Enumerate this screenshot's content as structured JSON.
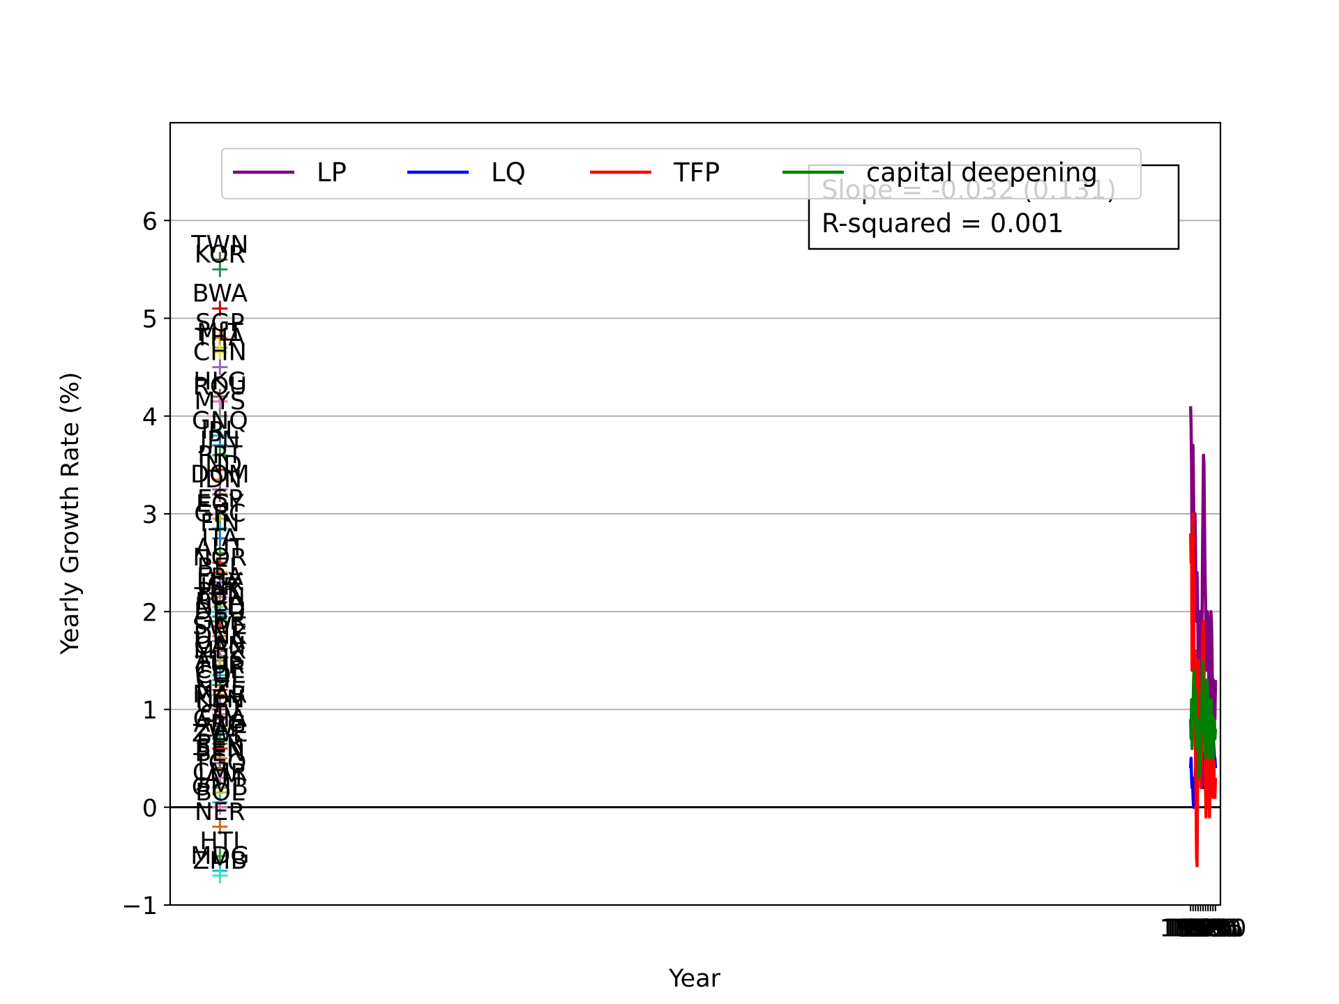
{
  "chart_data": {
    "type": "line",
    "xlabel": "Year",
    "ylabel": "Yearly Growth Rate (%)",
    "xlim": [
      -100,
      2010
    ],
    "ylim": [
      -1,
      7
    ],
    "yticks": [
      -1,
      0,
      1,
      2,
      3,
      4,
      5,
      6
    ],
    "grid": "horizontal",
    "x_ticks": [
      1950,
      1955,
      1960,
      1965,
      1970,
      1975,
      1980,
      1985,
      1990,
      1995,
      2000
    ],
    "legend_position": "top",
    "legend": [
      {
        "name": "LP",
        "color": "#800080"
      },
      {
        "name": "LQ",
        "color": "#0000ff"
      },
      {
        "name": "TFP",
        "color": "#ff0000"
      },
      {
        "name": "capital deepening",
        "color": "#008000"
      }
    ],
    "annotation": {
      "lines": [
        "Slope = -0.032 (0.131)",
        "R-squared = 0.001"
      ]
    },
    "series": [
      {
        "name": "LP",
        "color": "#800080",
        "x": [
          1950,
          1951,
          1952,
          1953,
          1954,
          1955,
          1956,
          1957,
          1958,
          1959,
          1960,
          1961,
          1962,
          1963,
          1964,
          1965,
          1966,
          1967,
          1968,
          1969,
          1970,
          1971,
          1972,
          1973,
          1974,
          1975,
          1976,
          1977,
          1978,
          1979,
          1980,
          1981,
          1982,
          1983,
          1984,
          1985,
          1986,
          1987,
          1988,
          1989,
          1990,
          1991,
          1992,
          1993,
          1994,
          1995,
          1996,
          1997,
          1998,
          1999,
          2000
        ],
        "y": [
          4.1,
          3.9,
          3.5,
          2.6,
          3.3,
          3.7,
          3.2,
          2.1,
          2.5,
          3.0,
          2.6,
          2.0,
          1.9,
          2.4,
          2.1,
          1.6,
          1.1,
          1.2,
          1.8,
          2.0,
          1.7,
          1.2,
          1.3,
          1.9,
          2.6,
          3.1,
          3.6,
          3.5,
          2.9,
          2.4,
          2.1,
          1.7,
          1.4,
          1.6,
          2.0,
          1.9,
          1.6,
          1.1,
          0.9,
          1.2,
          1.6,
          2.0,
          1.9,
          1.6,
          1.2,
          1.0,
          1.3,
          1.2,
          1.0,
          0.9,
          1.3
        ]
      },
      {
        "name": "LQ",
        "color": "#0000ff",
        "x": [
          1950,
          1951,
          1952,
          1953,
          1954,
          1955,
          1956,
          1957,
          1958,
          1959,
          1960,
          1961,
          1962,
          1963,
          1964,
          1965,
          1966,
          1967,
          1968,
          1969,
          1970,
          1971,
          1972,
          1973,
          1974,
          1975,
          1976,
          1977,
          1978,
          1979,
          1980,
          1981,
          1982,
          1983,
          1984,
          1985,
          1986,
          1987,
          1988,
          1989,
          1990,
          1991,
          1992,
          1993,
          1994,
          1995,
          1996,
          1997,
          1998,
          1999,
          2000
        ],
        "y": [
          0.4,
          0.5,
          0.3,
          0.2,
          0.3,
          0.1,
          0.0,
          0.0,
          0.1,
          0.2,
          0.4,
          0.3,
          0.5,
          0.6,
          0.8,
          0.9,
          0.7,
          0.6,
          0.8,
          1.0,
          0.9,
          0.7,
          0.6,
          0.5,
          0.3,
          0.2,
          0.3,
          0.4,
          0.5,
          0.4,
          0.3,
          0.3,
          0.4,
          0.5,
          0.6,
          0.7,
          0.8,
          0.7,
          0.6,
          0.5,
          0.5,
          0.6,
          0.7,
          0.6,
          0.5,
          0.6,
          0.7,
          0.6,
          0.5,
          0.5,
          0.4
        ]
      },
      {
        "name": "TFP",
        "color": "#ff0000",
        "x": [
          1950,
          1951,
          1952,
          1953,
          1954,
          1955,
          1956,
          1957,
          1958,
          1959,
          1960,
          1961,
          1962,
          1963,
          1964,
          1965,
          1966,
          1967,
          1968,
          1969,
          1970,
          1971,
          1972,
          1973,
          1974,
          1975,
          1976,
          1977,
          1978,
          1979,
          1980,
          1981,
          1982,
          1983,
          1984,
          1985,
          1986,
          1987,
          1988,
          1989,
          1990,
          1991,
          1992,
          1993,
          1994,
          1995,
          1996,
          1997,
          1998,
          1999,
          2000
        ],
        "y": [
          2.8,
          2.5,
          2.7,
          1.4,
          2.0,
          3.0,
          2.2,
          1.2,
          1.0,
          1.6,
          0.5,
          0.1,
          -0.5,
          -0.6,
          0.2,
          0.8,
          1.5,
          1.0,
          0.6,
          1.0,
          0.4,
          0.2,
          0.6,
          1.2,
          1.6,
          1.9,
          1.8,
          1.4,
          0.9,
          0.6,
          0.2,
          -0.1,
          0.3,
          0.8,
          1.1,
          1.0,
          0.7,
          0.3,
          -0.1,
          0.2,
          0.6,
          0.9,
          0.8,
          0.5,
          0.2,
          0.1,
          0.5,
          0.4,
          0.2,
          0.1,
          0.3
        ]
      },
      {
        "name": "capital deepening",
        "color": "#008000",
        "x": [
          1950,
          1951,
          1952,
          1953,
          1954,
          1955,
          1956,
          1957,
          1958,
          1959,
          1960,
          1961,
          1962,
          1963,
          1964,
          1965,
          1966,
          1967,
          1968,
          1969,
          1970,
          1971,
          1972,
          1973,
          1974,
          1975,
          1976,
          1977,
          1978,
          1979,
          1980,
          1981,
          1982,
          1983,
          1984,
          1985,
          1986,
          1987,
          1988,
          1989,
          1990,
          1991,
          1992,
          1993,
          1994,
          1995,
          1996,
          1997,
          1998,
          1999,
          2000
        ],
        "y": [
          0.9,
          0.7,
          1.1,
          0.6,
          0.8,
          1.0,
          1.3,
          1.4,
          1.1,
          0.9,
          1.2,
          1.0,
          0.7,
          0.6,
          0.9,
          0.8,
          0.5,
          0.3,
          0.6,
          0.4,
          0.6,
          0.8,
          0.9,
          1.2,
          1.5,
          1.3,
          1.1,
          0.9,
          0.7,
          0.5,
          0.6,
          0.9,
          1.1,
          1.3,
          1.2,
          1.0,
          0.8,
          0.6,
          0.5,
          0.7,
          0.9,
          1.1,
          1.0,
          0.8,
          0.7,
          0.5,
          0.6,
          0.8,
          0.9,
          0.7,
          0.8
        ]
      }
    ],
    "country_points": [
      {
        "label": "TWN",
        "y": 5.6,
        "color": "#556b2f"
      },
      {
        "label": "KOR",
        "y": 5.5,
        "color": "#2e8b57"
      },
      {
        "label": "BWA",
        "y": 5.1,
        "color": "#d00000"
      },
      {
        "label": "SGP",
        "y": 4.8,
        "color": "#ff7f0e"
      },
      {
        "label": "MLT",
        "y": 4.7,
        "color": "#bcbd22"
      },
      {
        "label": "THA",
        "y": 4.65,
        "color": "#e8e840"
      },
      {
        "label": "CHN",
        "y": 4.5,
        "color": "#9467bd"
      },
      {
        "label": "HKG",
        "y": 4.2,
        "color": "#8c564b"
      },
      {
        "label": "ROU",
        "y": 4.15,
        "color": "#e377c2"
      },
      {
        "label": "MYS",
        "y": 4.0,
        "color": "#7f7f7f"
      },
      {
        "label": "GNQ",
        "y": 3.8,
        "color": "#17becf"
      },
      {
        "label": "IRL",
        "y": 3.7,
        "color": "#1f77b4"
      },
      {
        "label": "JPN",
        "y": 3.6,
        "color": "#2ca02c"
      },
      {
        "label": "PRT",
        "y": 3.45,
        "color": "#d62728"
      },
      {
        "label": "IND",
        "y": 3.35,
        "color": "#ff7f0e"
      },
      {
        "label": "DOM",
        "y": 3.25,
        "color": "#9467bd"
      },
      {
        "label": "IDN",
        "y": 3.2,
        "color": "#8c564b"
      },
      {
        "label": "ESP",
        "y": 3.0,
        "color": "#e377c2"
      },
      {
        "label": "EGY",
        "y": 2.95,
        "color": "#bcbd22"
      },
      {
        "label": "GRC",
        "y": 2.85,
        "color": "#17becf"
      },
      {
        "label": "FIN",
        "y": 2.75,
        "color": "#1f77b4"
      },
      {
        "label": "ITA",
        "y": 2.6,
        "color": "#2ca02c"
      },
      {
        "label": "AUT",
        "y": 2.5,
        "color": "#d62728"
      },
      {
        "label": "NOR",
        "y": 2.4,
        "color": "#ff7f0e"
      },
      {
        "label": "BEL",
        "y": 2.3,
        "color": "#9467bd"
      },
      {
        "label": "FRA",
        "y": 2.2,
        "color": "#8c564b"
      },
      {
        "label": "LUX",
        "y": 2.15,
        "color": "#e377c2"
      },
      {
        "label": "ISR",
        "y": 2.1,
        "color": "#7f7f7f"
      },
      {
        "label": "PAK",
        "y": 2.05,
        "color": "#bcbd22"
      },
      {
        "label": "TUN",
        "y": 2.0,
        "color": "#17becf"
      },
      {
        "label": "BRA",
        "y": 1.95,
        "color": "#1f77b4"
      },
      {
        "label": "NLD",
        "y": 1.9,
        "color": "#2ca02c"
      },
      {
        "label": "DEU",
        "y": 1.85,
        "color": "#d62728"
      },
      {
        "label": "GBR",
        "y": 1.75,
        "color": "#ff7f0e"
      },
      {
        "label": "SWE",
        "y": 1.7,
        "color": "#9467bd"
      },
      {
        "label": "DNK",
        "y": 1.6,
        "color": "#8c564b"
      },
      {
        "label": "USA",
        "y": 1.55,
        "color": "#e377c2"
      },
      {
        "label": "CAN",
        "y": 1.5,
        "color": "#7f7f7f"
      },
      {
        "label": "MEX",
        "y": 1.45,
        "color": "#bcbd22"
      },
      {
        "label": "AUS",
        "y": 1.35,
        "color": "#17becf"
      },
      {
        "label": "TUR",
        "y": 1.3,
        "color": "#1f77b4"
      },
      {
        "label": "CHE",
        "y": 1.25,
        "color": "#2ca02c"
      },
      {
        "label": "COL",
        "y": 1.2,
        "color": "#d62728"
      },
      {
        "label": "CHL",
        "y": 1.15,
        "color": "#ff7f0e"
      },
      {
        "label": "NZL",
        "y": 1.05,
        "color": "#9467bd"
      },
      {
        "label": "MAR",
        "y": 1.0,
        "color": "#8c564b"
      },
      {
        "label": "KEN",
        "y": 0.95,
        "color": "#e377c2"
      },
      {
        "label": "URY",
        "y": 0.9,
        "color": "#7f7f7f"
      },
      {
        "label": "CIV",
        "y": 0.8,
        "color": "#bcbd22"
      },
      {
        "label": "GHA",
        "y": 0.75,
        "color": "#17becf"
      },
      {
        "label": "ARG",
        "y": 0.7,
        "color": "#1f77b4"
      },
      {
        "label": "ZAF",
        "y": 0.65,
        "color": "#2ca02c"
      },
      {
        "label": "ZWE",
        "y": 0.6,
        "color": "#d62728"
      },
      {
        "label": "PER",
        "y": 0.5,
        "color": "#ff7f0e"
      },
      {
        "label": "SEN",
        "y": 0.45,
        "color": "#9467bd"
      },
      {
        "label": "BEN",
        "y": 0.4,
        "color": "#8c564b"
      },
      {
        "label": "TGO",
        "y": 0.3,
        "color": "#e377c2"
      },
      {
        "label": "CMR",
        "y": 0.2,
        "color": "#7f7f7f"
      },
      {
        "label": "JAM",
        "y": 0.15,
        "color": "#bcbd22"
      },
      {
        "label": "GMB",
        "y": 0.05,
        "color": "#17becf"
      },
      {
        "label": "BOL",
        "y": 0.0,
        "color": "#e377c2"
      },
      {
        "label": "NER",
        "y": -0.2,
        "color": "#d2691e"
      },
      {
        "label": "HTI",
        "y": -0.5,
        "color": "#2ca02c"
      },
      {
        "label": "MDG",
        "y": -0.65,
        "color": "#17becf"
      },
      {
        "label": "ZMB",
        "y": -0.7,
        "color": "#40e0d0"
      }
    ]
  }
}
